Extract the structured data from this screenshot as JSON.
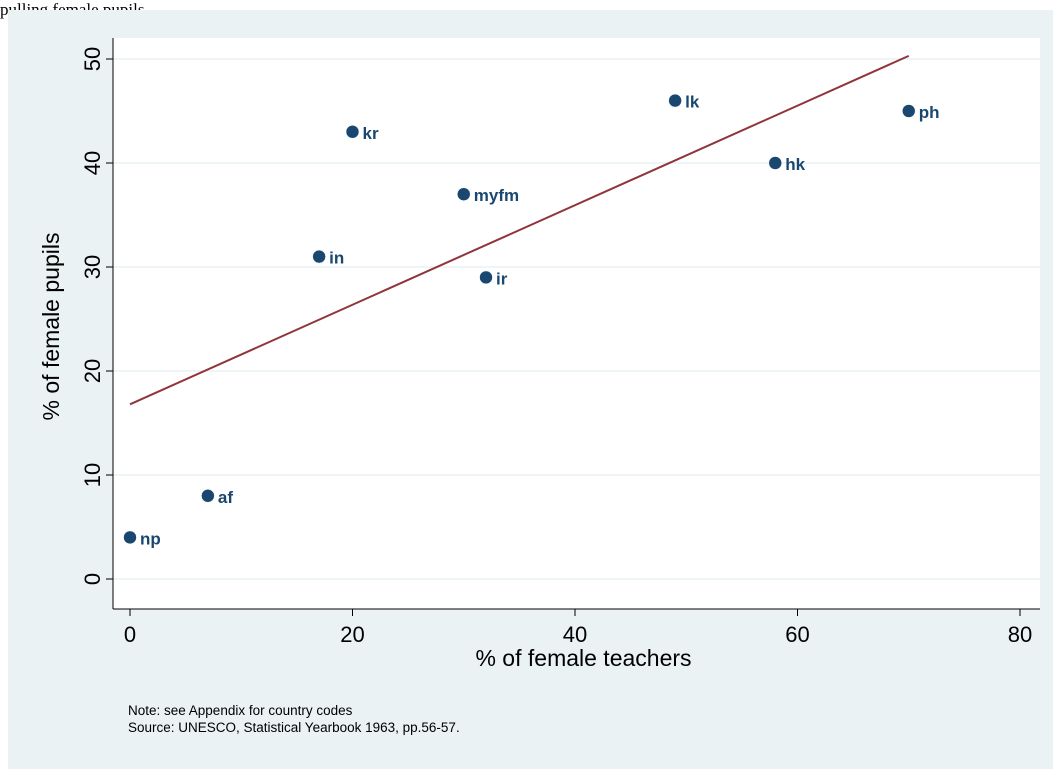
{
  "header_text": "pulling female pupils",
  "colors": {
    "background": "#eaf2f3",
    "plot_area": "#ffffff",
    "gridline": "#eaf2f3",
    "marker": "#1a476f",
    "fit_line": "#90353b",
    "axis": "#000000"
  },
  "chart_data": {
    "type": "scatter",
    "title": "",
    "xlabel": "% of female teachers",
    "ylabel": "% of female pupils",
    "xlim": [
      0,
      80
    ],
    "ylim": [
      0,
      50
    ],
    "x_ticks": [
      0,
      20,
      40,
      60,
      80
    ],
    "y_ticks": [
      0,
      10,
      20,
      30,
      40,
      50
    ],
    "grid": "horizontal",
    "points": [
      {
        "label": "np",
        "x": 0,
        "y": 4
      },
      {
        "label": "af",
        "x": 7,
        "y": 8
      },
      {
        "label": "in",
        "x": 17,
        "y": 31
      },
      {
        "label": "kr",
        "x": 20,
        "y": 43
      },
      {
        "label": "myfm",
        "x": 30,
        "y": 37
      },
      {
        "label": "ir",
        "x": 32,
        "y": 29
      },
      {
        "label": "lk",
        "x": 49,
        "y": 46
      },
      {
        "label": "hk",
        "x": 58,
        "y": 40
      },
      {
        "label": "ph",
        "x": 70,
        "y": 45
      }
    ],
    "fit_line": {
      "x": [
        0,
        70
      ],
      "y": [
        16.8,
        50.3
      ]
    }
  },
  "notes": {
    "line1": "Note: see Appendix for country codes",
    "line2": "Source: UNESCO, Statistical Yearbook 1963, pp.56-57."
  }
}
